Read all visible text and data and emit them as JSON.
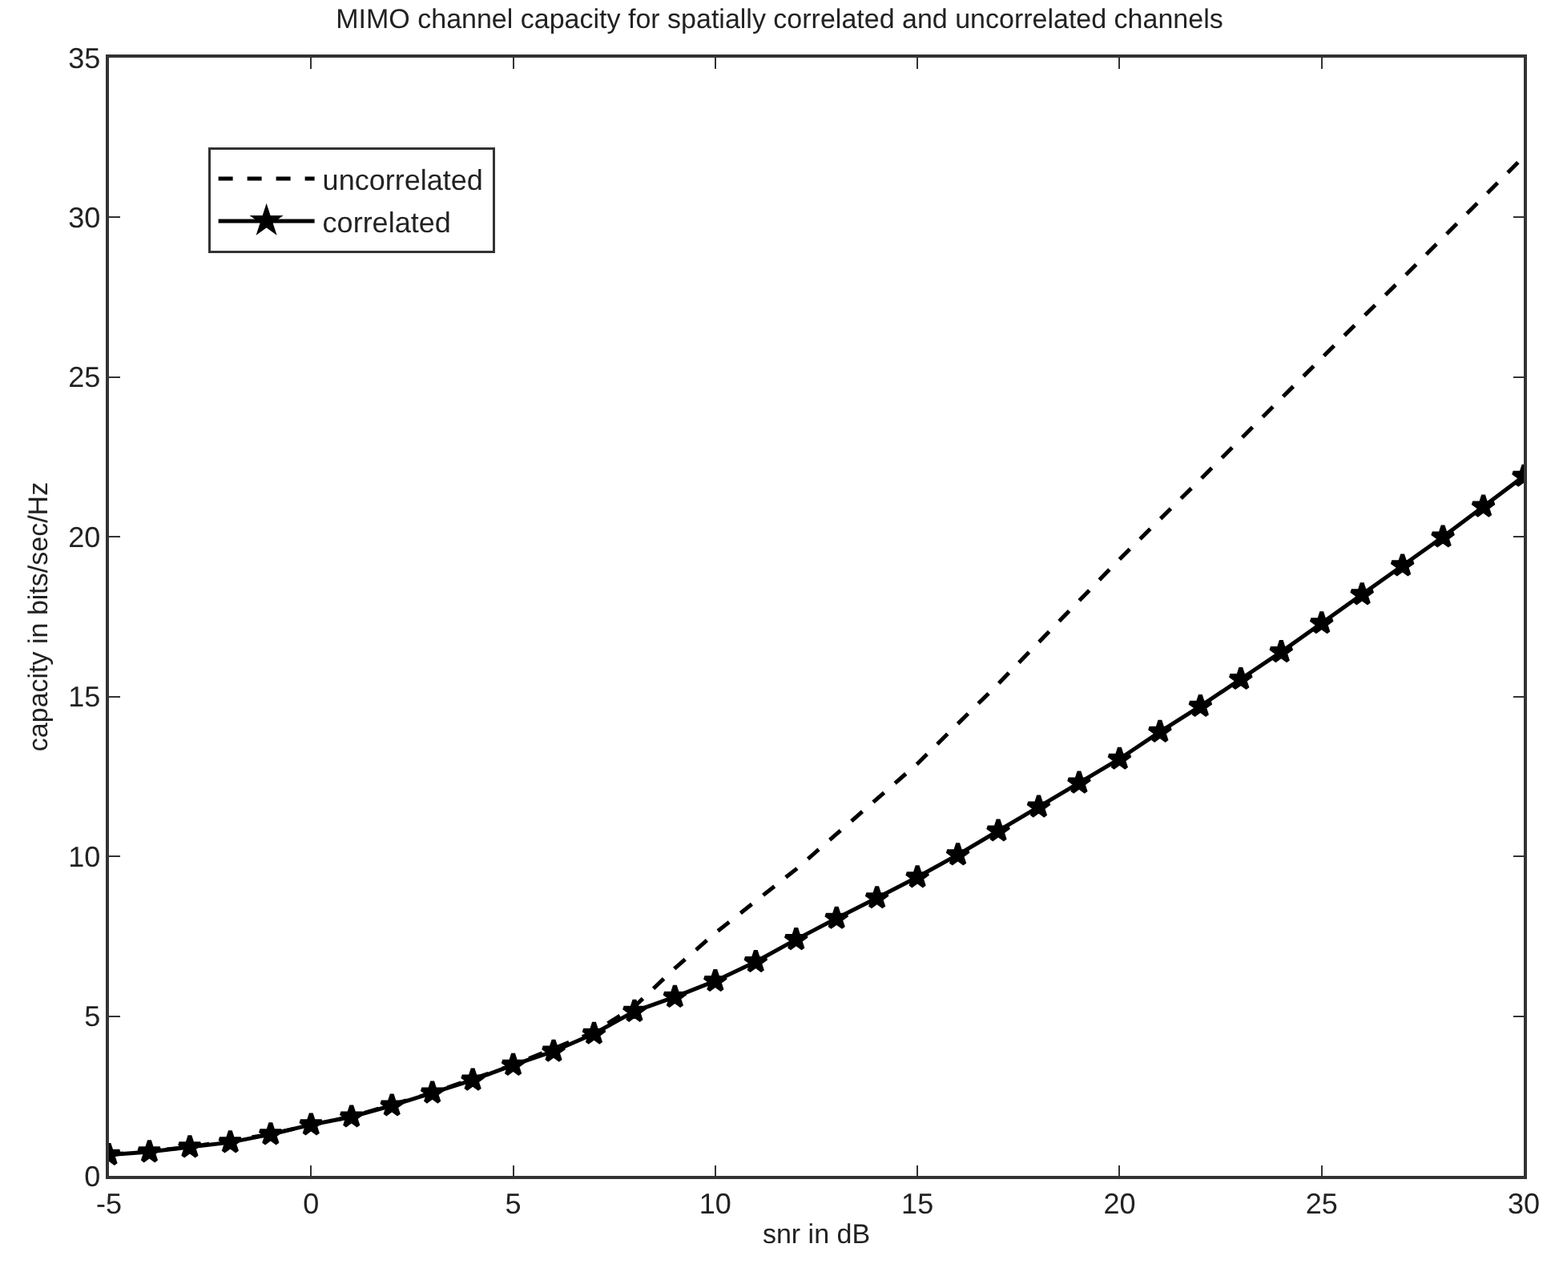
{
  "chart_data": {
    "type": "line",
    "title": "MIMO channel capacity for spatially correlated and uncorrelated channels",
    "xlabel": "snr in dB",
    "ylabel": "capacity in bits/sec/Hz",
    "xlim": [
      -5,
      30
    ],
    "xticks": [
      -5,
      0,
      5,
      10,
      15,
      20,
      25,
      30
    ],
    "ylim": [
      0,
      35
    ],
    "yticks": [
      0,
      5,
      10,
      15,
      20,
      25,
      30,
      35
    ],
    "legend": "top left",
    "series": [
      {
        "name": "uncorrelated",
        "color": "#000000",
        "line_style": "dashed",
        "marker": "none",
        "x": [
          -5,
          -3,
          -1,
          0,
          1,
          3,
          5,
          7,
          8,
          9,
          10,
          11,
          12,
          13,
          14,
          15,
          17,
          20,
          22,
          25,
          27,
          30
        ],
        "values": [
          0.66,
          0.9,
          1.3,
          1.6,
          1.85,
          2.6,
          3.47,
          4.5,
          5.3,
          6.5,
          7.6,
          8.6,
          9.6,
          10.7,
          11.8,
          12.9,
          15.4,
          19.3,
          21.8,
          25.6,
          28.1,
          31.9
        ]
      },
      {
        "name": "correlated",
        "color": "#000000",
        "line_style": "solid",
        "marker": "star",
        "x": [
          -5,
          -4,
          -3,
          -2,
          -1,
          0,
          1,
          2,
          3,
          4,
          5,
          6,
          7,
          8,
          9,
          10,
          11,
          12,
          13,
          14,
          15,
          16,
          17,
          18,
          19,
          20,
          21,
          22,
          23,
          24,
          25,
          26,
          27,
          28,
          29,
          30
        ],
        "values": [
          0.66,
          0.75,
          0.9,
          1.05,
          1.3,
          1.6,
          1.85,
          2.2,
          2.6,
          3.0,
          3.47,
          3.9,
          4.45,
          5.15,
          5.6,
          6.1,
          6.7,
          7.4,
          8.06,
          8.7,
          9.35,
          10.05,
          10.8,
          11.55,
          12.3,
          13.05,
          13.9,
          14.7,
          15.55,
          16.4,
          17.3,
          18.2,
          19.1,
          20.0,
          20.95,
          21.9
        ]
      }
    ]
  }
}
